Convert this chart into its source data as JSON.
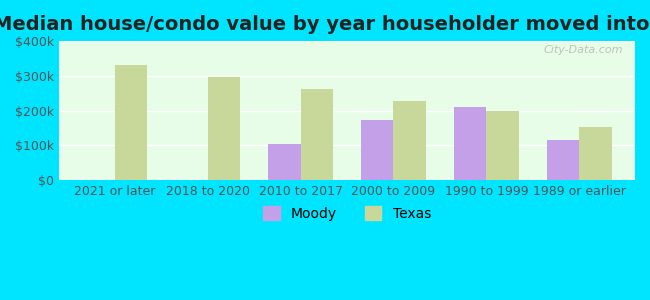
{
  "title": "Median house/condo value by year householder moved into unit",
  "categories": [
    "2021 or later",
    "2018 to 2020",
    "2010 to 2017",
    "2000 to 2009",
    "1990 to 1999",
    "1989 or earlier"
  ],
  "moody_values": [
    null,
    null,
    103000,
    173000,
    210000,
    115000
  ],
  "texas_values": [
    332000,
    297000,
    263000,
    228000,
    198000,
    152000
  ],
  "moody_color": "#c4a0e8",
  "texas_color": "#c8d89a",
  "background_color": "#e8fde8",
  "outer_background": "#00e5ff",
  "ylim": [
    0,
    400000
  ],
  "yticks": [
    0,
    100000,
    200000,
    300000,
    400000
  ],
  "ytick_labels": [
    "$0",
    "$100k",
    "$200k",
    "$300k",
    "$400k"
  ],
  "bar_width": 0.35,
  "legend_labels": [
    "Moody",
    "Texas"
  ],
  "watermark": "City-Data.com",
  "title_fontsize": 14,
  "tick_fontsize": 9,
  "legend_fontsize": 10
}
